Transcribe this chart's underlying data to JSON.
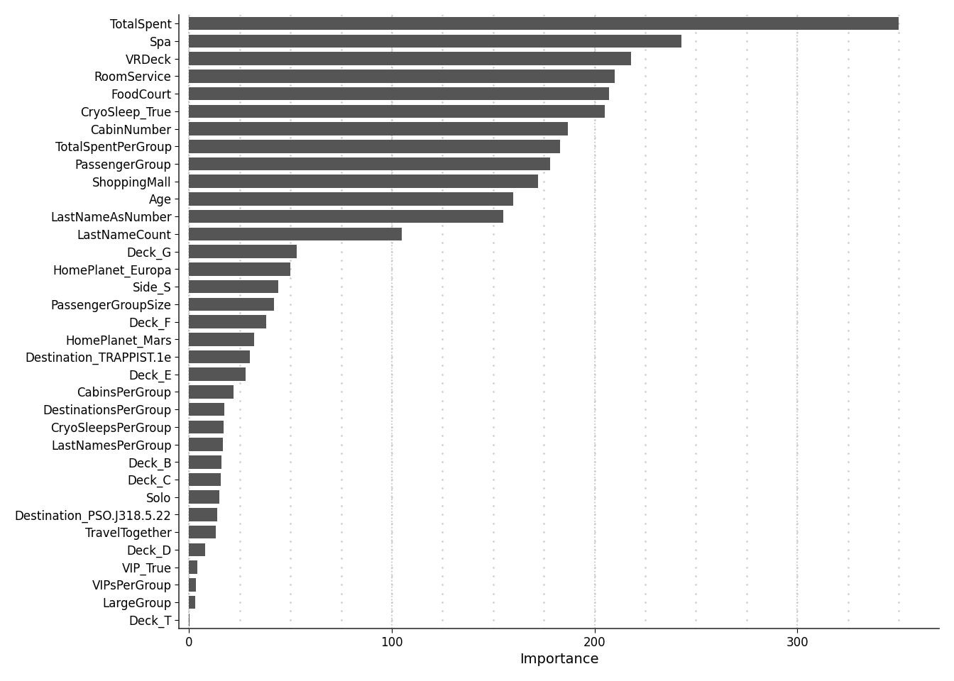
{
  "categories": [
    "Deck_T",
    "LargeGroup",
    "VIPsPerGroup",
    "VIP_True",
    "Deck_D",
    "TravelTogether",
    "Destination_PSO.J318.5.22",
    "Solo",
    "Deck_C",
    "Deck_B",
    "LastNamesPerGroup",
    "CryoSleepsPerGroup",
    "DestinationsPerGroup",
    "CabinsPerGroup",
    "Deck_E",
    "Destination_TRAPPIST.1e",
    "HomePlanet_Mars",
    "Deck_F",
    "PassengerGroupSize",
    "Side_S",
    "HomePlanet_Europa",
    "Deck_G",
    "LastNameCount",
    "LastNameAsNumber",
    "Age",
    "ShoppingMall",
    "PassengerGroup",
    "TotalSpentPerGroup",
    "CabinNumber",
    "CryoSleep_True",
    "FoodCourt",
    "RoomService",
    "VRDeck",
    "Spa",
    "TotalSpent"
  ],
  "values": [
    0.3,
    3.0,
    3.5,
    4.0,
    8.0,
    13.0,
    14.0,
    15.0,
    15.5,
    16.0,
    16.5,
    17.0,
    17.5,
    22.0,
    28.0,
    30.0,
    32.0,
    38.0,
    42.0,
    44.0,
    50.0,
    53.0,
    105.0,
    155.0,
    160.0,
    172.0,
    178.0,
    183.0,
    187.0,
    205.0,
    207.0,
    210.0,
    218.0,
    243.0,
    350.0
  ],
  "bar_color": "#555555",
  "background_color": "#ffffff",
  "xlabel": "Importance",
  "title": "",
  "xlim": [
    -5,
    370
  ],
  "xticks": [
    0,
    100,
    200,
    300
  ],
  "grid_color": "#c0c0c0",
  "grid_dot_color": "#c8c8c8",
  "tick_fontsize": 12,
  "label_fontsize": 14
}
